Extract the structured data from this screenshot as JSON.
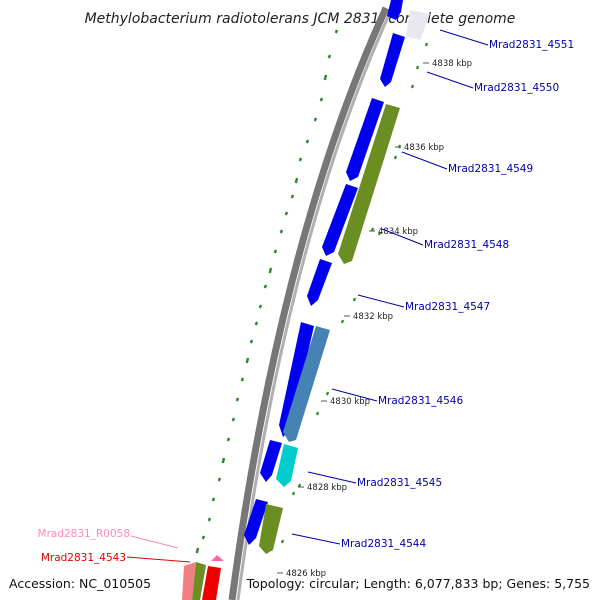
{
  "title": "Methylobacterium radiotolerans JCM 2831, complete genome",
  "accession": "Accession: NC_010505",
  "topology": "Topology: circular; Length: 6,077,833 bp; Genes: 5,755",
  "colors": {
    "cds_forward": "#0000ee",
    "cds_reverse_olive": "#6b8e23",
    "cds_steelblue": "#4682b4",
    "cds_cyan": "#00cccc",
    "rna_pink": "#f08080",
    "cds_red": "#ee0000",
    "backbone": "#888888",
    "gc_ticks": "#228b22",
    "label_blue": "#0000aa",
    "label_pink": "#ff88bb",
    "label_red": "#dd0000"
  },
  "scale_ticks": [
    {
      "label": "4838 kbp"
    },
    {
      "label": "4836 kbp"
    },
    {
      "label": "4834 kbp"
    },
    {
      "label": "4832 kbp"
    },
    {
      "label": "4830 kbp"
    },
    {
      "label": "4828 kbp"
    },
    {
      "label": "4826 kbp"
    }
  ],
  "gene_labels": [
    {
      "text": "Mrad2831_4551",
      "color": "#0000aa"
    },
    {
      "text": "Mrad2831_4550",
      "color": "#0000aa"
    },
    {
      "text": "Mrad2831_4549",
      "color": "#0000aa"
    },
    {
      "text": "Mrad2831_4548",
      "color": "#0000aa"
    },
    {
      "text": "Mrad2831_4547",
      "color": "#0000aa"
    },
    {
      "text": "Mrad2831_4546",
      "color": "#0000aa"
    },
    {
      "text": "Mrad2831_4545",
      "color": "#0000aa"
    },
    {
      "text": "Mrad2831_4544",
      "color": "#0000aa"
    },
    {
      "text": "Mrad2831_R0058",
      "color": "#ff88bb"
    },
    {
      "text": "Mrad2831_4543",
      "color": "#dd0000"
    }
  ]
}
